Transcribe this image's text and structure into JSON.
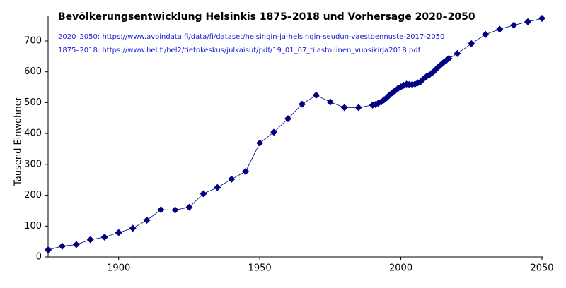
{
  "chart_data": {
    "type": "line",
    "title": "Bevölkerungsentwicklung Helsinkis 1875–2018 und Vorhersage 2020–2050",
    "annotations": [
      "2020–2050: https://www.avoindata.fi/data/fi/dataset/helsingin-ja-helsingin-seudun-vaestoennuste-2017-2050",
      "1875–2018: https://www.hel.fi/hel2/tietokeskus/julkaisut/pdf/19_01_07_tilastollinen_vuosikirja2018.pdf"
    ],
    "ylabel": "Tausend Einwohner",
    "x": [
      1875,
      1880,
      1885,
      1890,
      1895,
      1900,
      1905,
      1910,
      1915,
      1920,
      1925,
      1930,
      1935,
      1940,
      1945,
      1950,
      1955,
      1960,
      1965,
      1970,
      1975,
      1980,
      1985,
      1990,
      1991,
      1992,
      1993,
      1994,
      1995,
      1996,
      1997,
      1998,
      1999,
      2000,
      2001,
      2002,
      2003,
      2004,
      2005,
      2006,
      2007,
      2008,
      2009,
      2010,
      2011,
      2012,
      2013,
      2014,
      2015,
      2016,
      2017,
      2020,
      2025,
      2030,
      2035,
      2040,
      2045,
      2050
    ],
    "values": [
      23,
      35,
      40,
      56,
      64,
      79,
      93,
      119,
      153,
      152,
      161,
      205,
      225,
      252,
      277,
      369,
      404,
      448,
      495,
      524,
      502,
      484,
      484,
      492,
      494,
      498,
      502,
      509,
      516,
      525,
      532,
      539,
      546,
      551,
      556,
      560,
      559,
      559,
      560,
      564,
      568,
      577,
      584,
      589,
      596,
      604,
      613,
      621,
      629,
      636,
      643,
      659,
      691,
      721,
      738,
      751,
      762,
      773
    ],
    "color": "#000080",
    "xlim": [
      1875,
      2050
    ],
    "xticks": [
      1900,
      1950,
      2000,
      2050
    ],
    "ylim": [
      0,
      780
    ],
    "yticks": [
      0,
      100,
      200,
      300,
      400,
      500,
      600,
      700
    ]
  }
}
